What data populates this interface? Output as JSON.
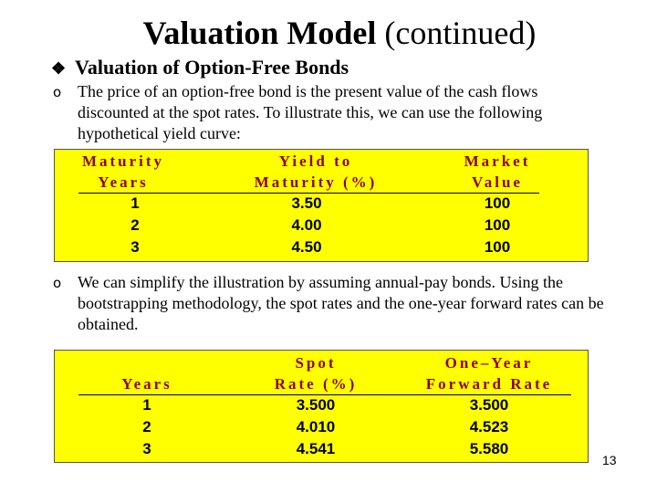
{
  "slide": {
    "title_bold": "Valuation Model",
    "title_normal": " (continued)",
    "heading": "Valuation of Option-Free Bonds",
    "paragraph_1": "The price of an option-free bond is the present value of the cash flows discounted at the spot rates. To illustrate this, we can use the following hypothetical yield curve:",
    "paragraph_2": "We can simplify the illustration by assuming annual-pay bonds. Using the bootstrapping methodology, the spot rates and the one-year forward rates can be obtained.",
    "page_number": "13"
  },
  "table_1": {
    "headers": [
      {
        "line1": "Maturity",
        "line2": "Years"
      },
      {
        "line1": "Yield to",
        "line2": "Maturity (%)"
      },
      {
        "line1": "Market",
        "line2": "Value"
      }
    ],
    "rows": [
      [
        "1",
        "3.50",
        "100"
      ],
      [
        "2",
        "4.00",
        "100"
      ],
      [
        "3",
        "4.50",
        "100"
      ]
    ]
  },
  "table_2": {
    "headers": [
      {
        "line1": "",
        "line2": "Years"
      },
      {
        "line1": "Spot",
        "line2": "Rate (%)"
      },
      {
        "line1": "One–Year",
        "line2": "Forward Rate"
      }
    ],
    "rows": [
      [
        "1",
        "3.500",
        "3.500"
      ],
      [
        "2",
        "4.010",
        "4.523"
      ],
      [
        "3",
        "4.541",
        "5.580"
      ]
    ]
  }
}
